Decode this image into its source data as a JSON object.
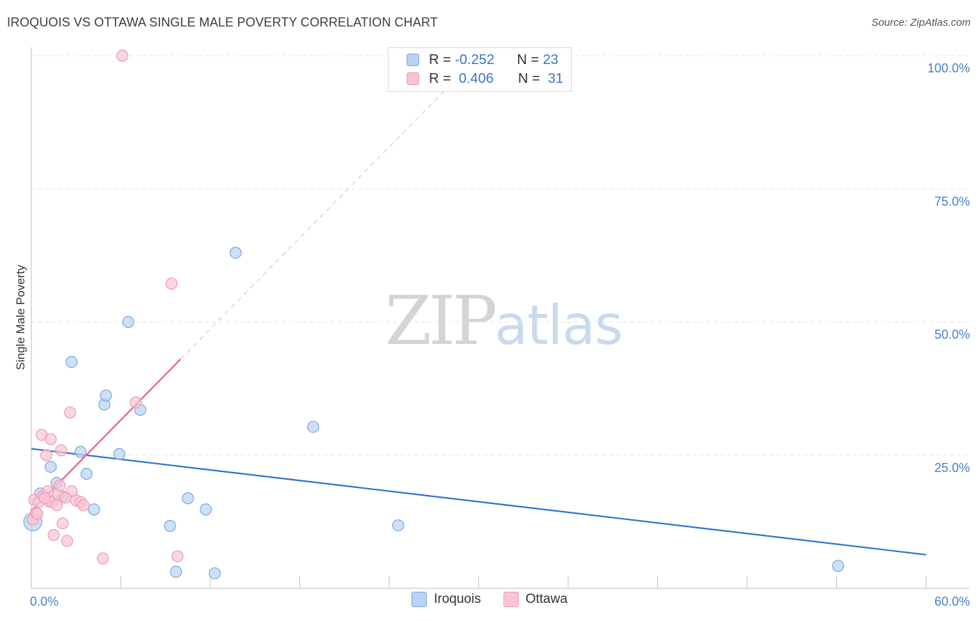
{
  "title": "IROQUOIS VS OTTAWA SINGLE MALE POVERTY CORRELATION CHART",
  "source": "Source: ZipAtlas.com",
  "watermark": {
    "part1": "ZIP",
    "part2": "atlas"
  },
  "colors": {
    "iroquois_fill": "#b9d3f3",
    "iroquois_stroke": "#7aa7dd",
    "iroquois_line": "#2f74d0",
    "ottawa_fill": "#f7c4d3",
    "ottawa_stroke": "#ee9ab4",
    "ottawa_line": "#e5608d",
    "tick_text": "#4a7fc9",
    "grid": "#e4e4e4"
  },
  "legend_top": {
    "rows": [
      {
        "series": "Iroquois",
        "r_label": "R =",
        "r_value": "-0.252",
        "n_label": "N =",
        "n_value": "23"
      },
      {
        "series": "Ottawa",
        "r_label": "R =",
        "r_value": "0.406",
        "n_label": "N =",
        "n_value": "31"
      }
    ]
  },
  "legend_bottom": [
    "Iroquois",
    "Ottawa"
  ],
  "chart_data": {
    "type": "scatter",
    "title": "IROQUOIS VS OTTAWA SINGLE MALE POVERTY CORRELATION CHART",
    "xlabel": "",
    "ylabel": "Single Male Poverty",
    "xlim": [
      0,
      60
    ],
    "ylim": [
      0,
      100
    ],
    "x_ticks": [
      {
        "value": 0,
        "label": "0.0%"
      },
      {
        "value": 60,
        "label": "60.0%"
      }
    ],
    "x_minor_ticks": [
      6,
      12,
      18,
      24,
      30,
      36,
      42,
      48,
      54,
      60
    ],
    "y_ticks": [
      {
        "value": 25,
        "label": "25.0%"
      },
      {
        "value": 50,
        "label": "50.0%"
      },
      {
        "value": 75,
        "label": "75.0%"
      },
      {
        "value": 100,
        "label": "100.0%"
      }
    ],
    "grid": true,
    "legend_position": "top-center",
    "series": [
      {
        "name": "Iroquois",
        "r": -0.252,
        "n": 23,
        "points": [
          {
            "x": 0.1,
            "y": 12.5,
            "big": true
          },
          {
            "x": 0.6,
            "y": 17.8
          },
          {
            "x": 1.3,
            "y": 22.8
          },
          {
            "x": 1.7,
            "y": 19.8
          },
          {
            "x": 2.1,
            "y": 17.2
          },
          {
            "x": 2.7,
            "y": 42.5
          },
          {
            "x": 3.3,
            "y": 25.6
          },
          {
            "x": 3.7,
            "y": 21.5
          },
          {
            "x": 4.2,
            "y": 14.8
          },
          {
            "x": 4.9,
            "y": 34.5
          },
          {
            "x": 5.0,
            "y": 36.2
          },
          {
            "x": 5.9,
            "y": 25.2
          },
          {
            "x": 6.5,
            "y": 50.0
          },
          {
            "x": 7.3,
            "y": 33.5
          },
          {
            "x": 9.3,
            "y": 11.7
          },
          {
            "x": 9.7,
            "y": 3.1
          },
          {
            "x": 10.5,
            "y": 16.9
          },
          {
            "x": 11.7,
            "y": 14.8
          },
          {
            "x": 12.3,
            "y": 2.8
          },
          {
            "x": 13.7,
            "y": 63.0
          },
          {
            "x": 18.9,
            "y": 30.3
          },
          {
            "x": 24.6,
            "y": 11.8
          },
          {
            "x": 54.1,
            "y": 4.2
          }
        ],
        "trend": {
          "x": [
            0,
            60
          ],
          "y": [
            26.2,
            6.3
          ],
          "style": "solid"
        }
      },
      {
        "name": "Ottawa",
        "r": 0.406,
        "n": 31,
        "points": [
          {
            "x": 0.1,
            "y": 12.9
          },
          {
            "x": 0.2,
            "y": 16.6
          },
          {
            "x": 0.3,
            "y": 14.2
          },
          {
            "x": 0.5,
            "y": 16.2
          },
          {
            "x": 0.7,
            "y": 28.8
          },
          {
            "x": 0.8,
            "y": 17.3
          },
          {
            "x": 1.0,
            "y": 25.0
          },
          {
            "x": 1.1,
            "y": 18.2
          },
          {
            "x": 1.2,
            "y": 16.3
          },
          {
            "x": 1.3,
            "y": 28.0
          },
          {
            "x": 1.4,
            "y": 16.2
          },
          {
            "x": 1.5,
            "y": 10.0
          },
          {
            "x": 1.7,
            "y": 15.6
          },
          {
            "x": 1.8,
            "y": 17.6
          },
          {
            "x": 2.0,
            "y": 25.9
          },
          {
            "x": 2.1,
            "y": 12.2
          },
          {
            "x": 2.4,
            "y": 8.9
          },
          {
            "x": 2.6,
            "y": 33.0
          },
          {
            "x": 2.7,
            "y": 18.2
          },
          {
            "x": 3.0,
            "y": 16.5
          },
          {
            "x": 3.3,
            "y": 16.2
          },
          {
            "x": 3.5,
            "y": 15.6
          },
          {
            "x": 4.8,
            "y": 5.6
          },
          {
            "x": 6.1,
            "y": 100.0
          },
          {
            "x": 7.0,
            "y": 34.9
          },
          {
            "x": 9.4,
            "y": 57.2
          },
          {
            "x": 9.8,
            "y": 6.0
          },
          {
            "x": 0.4,
            "y": 14.0
          },
          {
            "x": 0.9,
            "y": 16.9
          },
          {
            "x": 1.9,
            "y": 19.3
          },
          {
            "x": 2.3,
            "y": 17.0
          }
        ],
        "trend": {
          "x": [
            0,
            10
          ],
          "y": [
            14.5,
            43.0
          ],
          "style": "solid"
        },
        "trend_extension": {
          "x": [
            10,
            28.4
          ],
          "y": [
            43.0,
            95.4
          ],
          "style": "dashed"
        }
      }
    ]
  }
}
